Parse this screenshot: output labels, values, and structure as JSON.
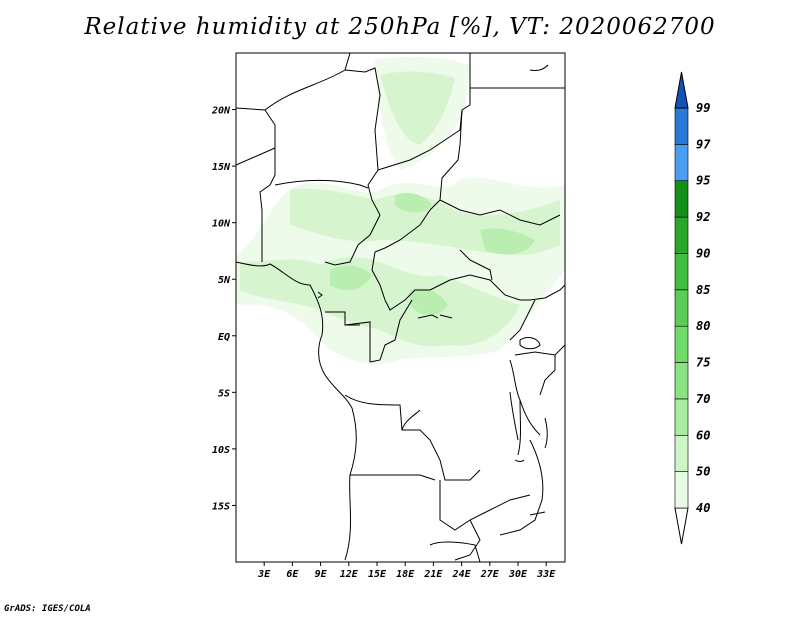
{
  "title": "Relative humidity at 250hPa [%], VT: 2020062700",
  "credit": "GrADS: IGES/COLA",
  "map": {
    "lon_range": [
      0,
      35
    ],
    "lat_range": [
      -20,
      25
    ],
    "lon_ticks": [
      {
        "value": 3,
        "label": "3E"
      },
      {
        "value": 6,
        "label": "6E"
      },
      {
        "value": 9,
        "label": "9E"
      },
      {
        "value": 12,
        "label": "12E"
      },
      {
        "value": 15,
        "label": "15E"
      },
      {
        "value": 18,
        "label": "18E"
      },
      {
        "value": 21,
        "label": "21E"
      },
      {
        "value": 24,
        "label": "24E"
      },
      {
        "value": 27,
        "label": "27E"
      },
      {
        "value": 30,
        "label": "30E"
      },
      {
        "value": 33,
        "label": "33E"
      }
    ],
    "lat_ticks": [
      {
        "value": 20,
        "label": "20N"
      },
      {
        "value": 15,
        "label": "15N"
      },
      {
        "value": 10,
        "label": "10N"
      },
      {
        "value": 5,
        "label": "5N"
      },
      {
        "value": 0,
        "label": "EQ"
      },
      {
        "value": -5,
        "label": "5S"
      },
      {
        "value": -10,
        "label": "10S"
      },
      {
        "value": -15,
        "label": "15S"
      }
    ],
    "field_colors": {
      "band_40": "#eefaea",
      "band_50": "#d6f5cf",
      "band_60": "#baedb0"
    }
  },
  "colorbar": {
    "levels": [
      "40",
      "50",
      "60",
      "70",
      "75",
      "80",
      "85",
      "90",
      "92",
      "95",
      "97",
      "99"
    ],
    "colors": [
      "#ffffff",
      "#e8fbe4",
      "#cdf5c5",
      "#a8eda0",
      "#8ae283",
      "#6fd96a",
      "#58cf54",
      "#3fbf3d",
      "#28a828",
      "#14901a",
      "#4a9ef0",
      "#2a78d8",
      "#1452b8"
    ]
  }
}
